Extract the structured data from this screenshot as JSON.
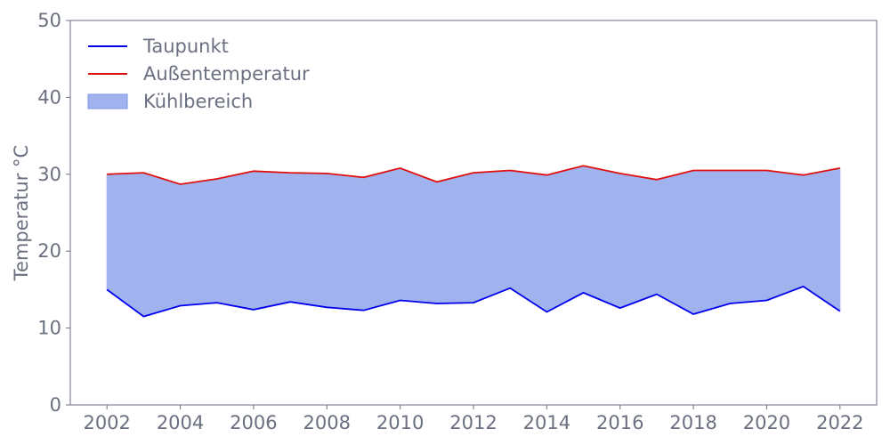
{
  "chart_data": {
    "type": "area",
    "title": "",
    "xlabel": "",
    "ylabel": "Temperatur °C",
    "xlim": [
      2001,
      2023
    ],
    "ylim": [
      0,
      50
    ],
    "x_ticks": [
      "2002",
      "2004",
      "2006",
      "2008",
      "2010",
      "2012",
      "2014",
      "2016",
      "2018",
      "2020",
      "2022"
    ],
    "y_ticks": [
      "0",
      "10",
      "20",
      "30",
      "40",
      "50"
    ],
    "grid": false,
    "legend_position": "top-left",
    "x": [
      2002,
      2003,
      2004,
      2005,
      2006,
      2007,
      2008,
      2009,
      2010,
      2011,
      2012,
      2013,
      2014,
      2015,
      2016,
      2017,
      2018,
      2019,
      2020,
      2021,
      2022
    ],
    "series": [
      {
        "name": "Taupunkt",
        "kind": "line",
        "color": "#0000ee",
        "values": [
          15.0,
          11.5,
          12.9,
          13.3,
          12.4,
          13.4,
          12.7,
          12.3,
          13.6,
          13.2,
          13.3,
          15.2,
          12.1,
          14.6,
          12.6,
          14.4,
          11.8,
          13.2,
          13.6,
          15.4,
          12.2
        ]
      },
      {
        "name": "Außentemperatur",
        "kind": "line",
        "color": "#e01010",
        "values": [
          30.0,
          30.2,
          28.7,
          29.4,
          30.4,
          30.2,
          30.1,
          29.6,
          30.8,
          29.0,
          30.2,
          30.5,
          29.9,
          31.1,
          30.1,
          29.3,
          30.5,
          30.5,
          30.5,
          29.9,
          30.8
        ]
      }
    ],
    "fill_between": {
      "name": "Kühlbereich",
      "lower": "Taupunkt",
      "upper": "Außentemperatur",
      "color": "#a0b3ef"
    }
  }
}
